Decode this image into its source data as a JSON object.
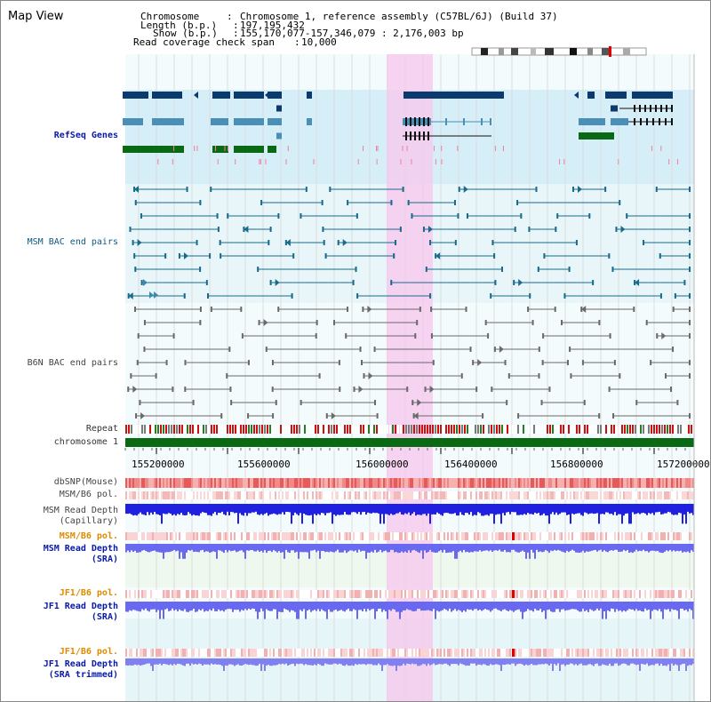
{
  "page": {
    "title": "Map View"
  },
  "header": {
    "chromosome_label": "Chromosome",
    "chromosome_value": "Chromosome 1, reference assembly (C57BL/6J) (Build 37)",
    "length_label": "Length (b.p.)",
    "length_value": "197,195,432",
    "show_label": "Show (b.p.)",
    "show_value": "155,170,077-157,346,079 : 2,176,003 bp",
    "coverage_label": "Read coverage check span",
    "coverage_value": "10,000"
  },
  "tracks": {
    "refseq": "RefSeq Genes",
    "msm_bac": "MSM BAC end pairs",
    "b6n_bac": "B6N BAC end pairs",
    "repeat": "Repeat",
    "chromosome": "chromosome 1",
    "dbsnp": "dbSNP(Mouse)",
    "msm_b6_pol": "MSM/B6 pol.",
    "msm_depth_cap_1": "MSM Read Depth",
    "msm_depth_cap_2": "(Capillary)",
    "msm_b6_pol_2": "MSM/B6 pol.",
    "msm_depth_sra_1": "MSM Read Depth",
    "msm_depth_sra_2": "(SRA)",
    "jf1_b6_pol": "JF1/B6 pol.",
    "jf1_depth_sra_1": "JF1 Read Depth",
    "jf1_depth_sra_2": "(SRA)",
    "jf1_b6_pol_2": "JF1/B6 pol.",
    "jf1_depth_trim_1": "JF1 Read Depth",
    "jf1_depth_trim_2": "(SRA trimmed)"
  },
  "axis": {
    "ticks": [
      "155200000",
      "155600000",
      "156000000",
      "156400000",
      "156800000",
      "157200000"
    ]
  },
  "colors": {
    "refseq_bg": "#d6eef8",
    "highlight": "#f6c9ee",
    "gene_dark": "#0b3a6e",
    "gene_mid": "#4a8fb5",
    "gene_green": "#0a6a14",
    "chrom_bar": "#0a6a14",
    "depth_dark": "#2020e0",
    "depth_light": "#6868f0",
    "snp": "#f08080"
  }
}
